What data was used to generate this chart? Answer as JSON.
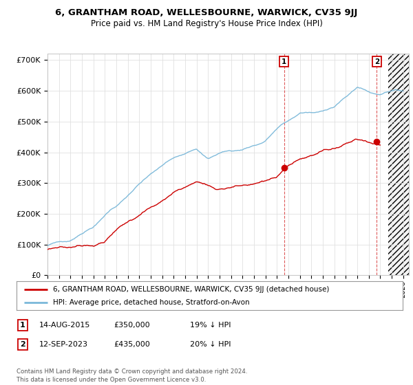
{
  "title": "6, GRANTHAM ROAD, WELLESBOURNE, WARWICK, CV35 9JJ",
  "subtitle": "Price paid vs. HM Land Registry's House Price Index (HPI)",
  "ylabel_ticks": [
    "£0",
    "£100K",
    "£200K",
    "£300K",
    "£400K",
    "£500K",
    "£600K",
    "£700K"
  ],
  "ytick_vals": [
    0,
    100000,
    200000,
    300000,
    400000,
    500000,
    600000,
    700000
  ],
  "ylim": [
    0,
    720000
  ],
  "xlim_start": 1995.0,
  "xlim_end": 2026.5,
  "hpi_color": "#7ab8d9",
  "price_color": "#cc0000",
  "marker1_year": 2015.62,
  "marker1_price": 350000,
  "marker2_year": 2023.71,
  "marker2_price": 435000,
  "marker1_label": "1",
  "marker2_label": "2",
  "legend_line1": "6, GRANTHAM ROAD, WELLESBOURNE, WARWICK, CV35 9JJ (detached house)",
  "legend_line2": "HPI: Average price, detached house, Stratford-on-Avon",
  "footer": "Contains HM Land Registry data © Crown copyright and database right 2024.\nThis data is licensed under the Open Government Licence v3.0.",
  "background_color": "#ffffff",
  "grid_color": "#e0e0e0",
  "hatch_start": 2024.67,
  "fig_width": 6.0,
  "fig_height": 5.6,
  "fig_dpi": 100
}
